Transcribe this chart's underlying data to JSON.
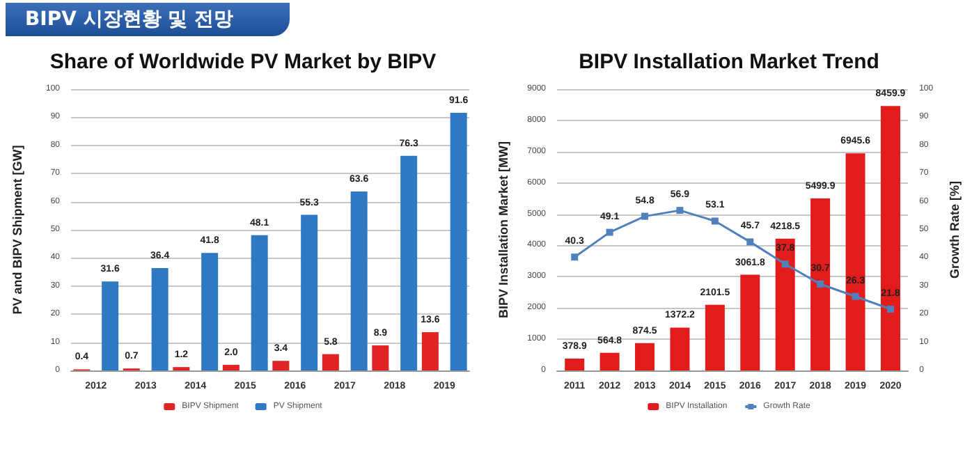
{
  "chart_data": [
    {
      "type": "bar",
      "title": "Share of Worldwide PV Market by BIPV",
      "ylabel": "PV and BIPV Shipment [GW]",
      "annotations": [
        "BIPV 시장현황 및 전망"
      ],
      "categories": [
        "2012",
        "2013",
        "2014",
        "2015",
        "2016",
        "2017",
        "2018",
        "2019"
      ],
      "series": [
        {
          "name": "BIPV Shipment",
          "color": "#e02424",
          "values": [
            0.4,
            0.7,
            1.2,
            2.0,
            3.4,
            5.8,
            8.9,
            13.6
          ],
          "value_labels": [
            "0.4",
            "0.7",
            "1.2",
            "2.0",
            "3.4",
            "5.8",
            "8.9",
            "13.6"
          ]
        },
        {
          "name": "PV Shipment",
          "color": "#2e78c4",
          "values": [
            31.6,
            36.4,
            41.8,
            48.1,
            55.3,
            63.6,
            76.3,
            91.6
          ]
        }
      ],
      "ylim": [
        0,
        100
      ],
      "yticks": [
        0,
        10,
        20,
        30,
        40,
        50,
        60,
        70,
        80,
        90,
        100
      ],
      "grid": "y",
      "legend": "bottom",
      "data_labels": true
    },
    {
      "type": "bar",
      "title": "BIPV Installation Market Trend",
      "ylabel": "BIPV Installation Market [MW]",
      "y2label": "Growth Rate [%]",
      "categories": [
        "2011",
        "2012",
        "2013",
        "2014",
        "2015",
        "2016",
        "2017",
        "2018",
        "2019",
        "2020"
      ],
      "series": [
        {
          "name": "BIPV Installation",
          "color": "#e21b1b",
          "values": [
            378.9,
            564.8,
            874.5,
            1372.2,
            2101.5,
            3061.8,
            4218.5,
            5499.9,
            6945.6,
            8459.9
          ]
        },
        {
          "name": "Growth Rate",
          "type": "line",
          "axis": "y2",
          "color": "#4f81bd",
          "values": [
            40.3,
            49.1,
            54.8,
            56.9,
            53.1,
            45.7,
            37.8,
            30.7,
            26.3,
            21.8
          ]
        }
      ],
      "ylim": [
        0,
        9000
      ],
      "yticks": [
        0,
        1000,
        2000,
        3000,
        4000,
        5000,
        6000,
        7000,
        8000,
        9000
      ],
      "y2lim": [
        0,
        100
      ],
      "y2ticks": [
        0,
        10,
        20,
        30,
        40,
        50,
        60,
        70,
        80,
        90,
        100
      ],
      "grid": "y",
      "legend": "bottom",
      "data_labels": true,
      "marker": "square"
    }
  ]
}
